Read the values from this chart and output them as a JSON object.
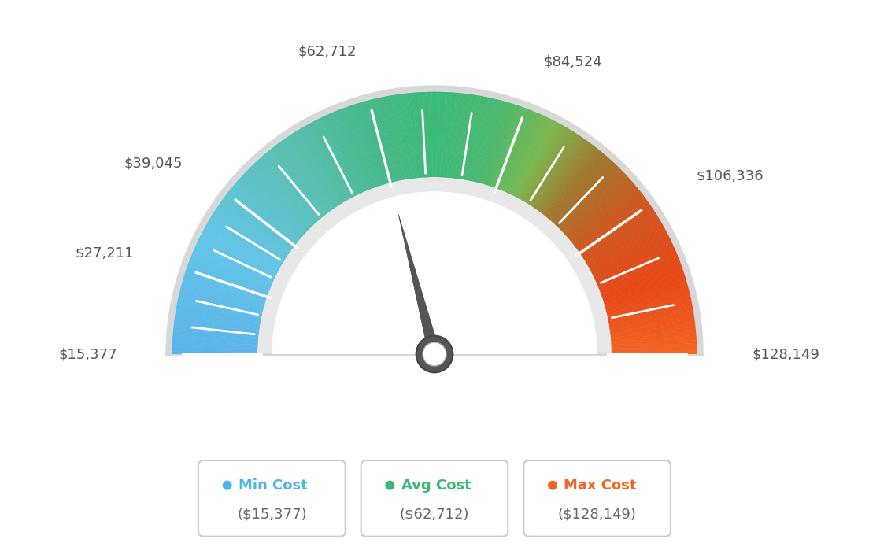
{
  "min_value": 15377,
  "avg_value": 62712,
  "max_value": 128149,
  "tick_labels": [
    "$15,377",
    "$27,211",
    "$39,045",
    "$62,712",
    "$84,524",
    "$106,336",
    "$128,149"
  ],
  "tick_values": [
    15377,
    27211,
    39045,
    62712,
    84524,
    106336,
    128149
  ],
  "legend_items": [
    {
      "label": "Min Cost",
      "value": "($15,377)",
      "color": "#4db6e8"
    },
    {
      "label": "Avg Cost",
      "value": "($62,712)",
      "color": "#3bb878"
    },
    {
      "label": "Max Cost",
      "value": "($128,149)",
      "color": "#f26522"
    }
  ],
  "background_color": "#ffffff",
  "colors_gradient": [
    [
      0.0,
      "#5ab4e8"
    ],
    [
      0.15,
      "#63c4e8"
    ],
    [
      0.3,
      "#5abfb0"
    ],
    [
      0.42,
      "#45b888"
    ],
    [
      0.5,
      "#3cb878"
    ],
    [
      0.58,
      "#4ab870"
    ],
    [
      0.65,
      "#7ab850"
    ],
    [
      0.72,
      "#a07830"
    ],
    [
      0.8,
      "#d05820"
    ],
    [
      0.9,
      "#e84818"
    ],
    [
      1.0,
      "#f26522"
    ]
  ],
  "needle_color": "#555555",
  "outer_border_color": "#cccccc",
  "inner_fill_color": "#ffffff",
  "inner_ring_color": "#d0d0d0"
}
